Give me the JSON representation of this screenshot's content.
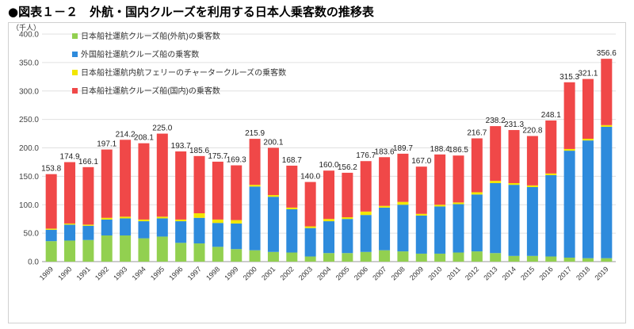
{
  "title": "●図表１－２　外航・国内クルーズを利用する日本人乗客数の推移表",
  "chart_data": {
    "type": "bar",
    "stacked": true,
    "unit_label": "（千人）",
    "ylim": [
      0,
      400
    ],
    "yticks": [
      "0.0",
      "50.0",
      "100.0",
      "150.0",
      "200.0",
      "250.0",
      "300.0",
      "350.0",
      "400.0"
    ],
    "grid": true,
    "legend_position": "top-left",
    "categories": [
      "1989",
      "1990",
      "1991",
      "1992",
      "1993",
      "1994",
      "1995",
      "1996",
      "1997",
      "1998",
      "1999",
      "2000",
      "2001",
      "2002",
      "2003",
      "2004",
      "2005",
      "2006",
      "2007",
      "2008",
      "2009",
      "2010",
      "2011",
      "2012",
      "2013",
      "2014",
      "2015",
      "2016",
      "2017",
      "2018",
      "2019"
    ],
    "totals": [
      "153.8",
      "174.9",
      "166.1",
      "197.1",
      "214.2",
      "208.1",
      "225.0",
      "193.7",
      "185.6",
      "175.7",
      "169.3",
      "215.9",
      "200.1",
      "168.7",
      "140.0",
      "160.0",
      "156.2",
      "176.7",
      "183.6",
      "189.7",
      "167.0",
      "188.4",
      "186.5",
      "216.7",
      "238.2",
      "231.3",
      "220.8",
      "248.1",
      "315.3",
      "321.1",
      "356.6"
    ],
    "series": [
      {
        "name": "日本船社運航クルーズ船(外航)の乗客数",
        "color": "#92d050",
        "values": [
          36,
          37,
          38,
          46,
          46,
          41,
          44,
          33,
          32,
          26,
          22,
          20,
          17,
          16,
          9,
          15,
          15,
          17,
          20,
          18,
          14,
          14,
          16,
          18,
          15,
          10,
          10,
          9,
          7,
          6,
          6
        ]
      },
      {
        "name": "外国船社運航クルーズ船の乗客数",
        "color": "#2e8bdc",
        "values": [
          20,
          28,
          25,
          28,
          30,
          30,
          32,
          38,
          45,
          42,
          45,
          112,
          97,
          76,
          50,
          56,
          60,
          65,
          75,
          82,
          67,
          83,
          85,
          100,
          123,
          125,
          121,
          143,
          188,
          207,
          231
        ]
      },
      {
        "name": "日本船社運航内航フェリーのチャータークルーズの乗客数",
        "color": "#f2e600",
        "values": [
          2,
          2,
          2,
          3,
          3,
          3,
          3,
          3,
          8,
          6,
          6,
          3,
          3,
          3,
          3,
          4,
          3,
          6,
          3,
          5,
          3,
          3,
          3,
          4,
          4,
          3,
          3,
          3,
          3,
          3,
          3
        ]
      },
      {
        "name": "日本船社運航クルーズ船(国内)の乗客数",
        "color": "#f04848",
        "values": [
          95.8,
          107.9,
          101.1,
          120.1,
          135.2,
          134.1,
          146.0,
          119.7,
          100.6,
          101.7,
          96.3,
          80.9,
          83.1,
          73.7,
          78.0,
          85.0,
          78.2,
          88.7,
          85.6,
          84.7,
          83.0,
          88.4,
          82.5,
          94.7,
          96.2,
          93.3,
          86.8,
          93.1,
          117.3,
          105.1,
          116.6
        ]
      }
    ]
  }
}
